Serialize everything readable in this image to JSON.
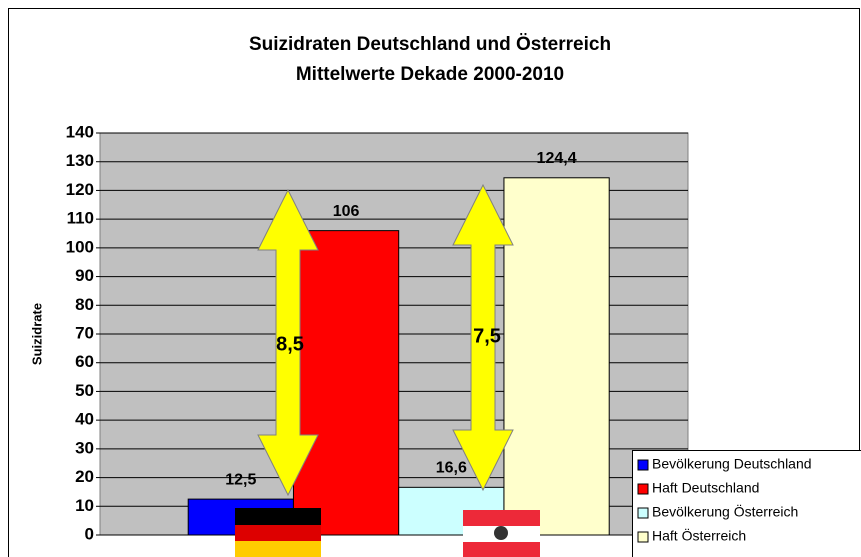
{
  "chart_data": {
    "type": "bar",
    "title": "Suizidraten Deutschland  und Österreich",
    "subtitle": "Mittelwerte Dekade 2000-2010",
    "y_label": "Suizidrate",
    "categories": [
      null
    ],
    "series": [
      {
        "name": "Bevölkerung Deutschland",
        "color": "#0000ff",
        "values": [
          12.5
        ],
        "value_labels": [
          "12,5"
        ]
      },
      {
        "name": "Haft Deutschland",
        "color": "#ff0000",
        "values": [
          106
        ],
        "value_labels": [
          "106"
        ]
      },
      {
        "name": "Bevölkerung Österreich",
        "color": "#ccffff",
        "values": [
          16.6
        ],
        "value_labels": [
          "16,6"
        ]
      },
      {
        "name": "Haft Österreich",
        "color": "#ffffcc",
        "values": [
          124.4
        ],
        "value_labels": [
          "124,4"
        ]
      }
    ],
    "annotations": [
      "8,5",
      "7,5"
    ],
    "ylim": [
      0,
      140
    ],
    "yticks": [
      0,
      10,
      20,
      30,
      40,
      50,
      60,
      70,
      80,
      90,
      100,
      110,
      120,
      130,
      140
    ],
    "grid": true,
    "legend": "bottom-right"
  }
}
